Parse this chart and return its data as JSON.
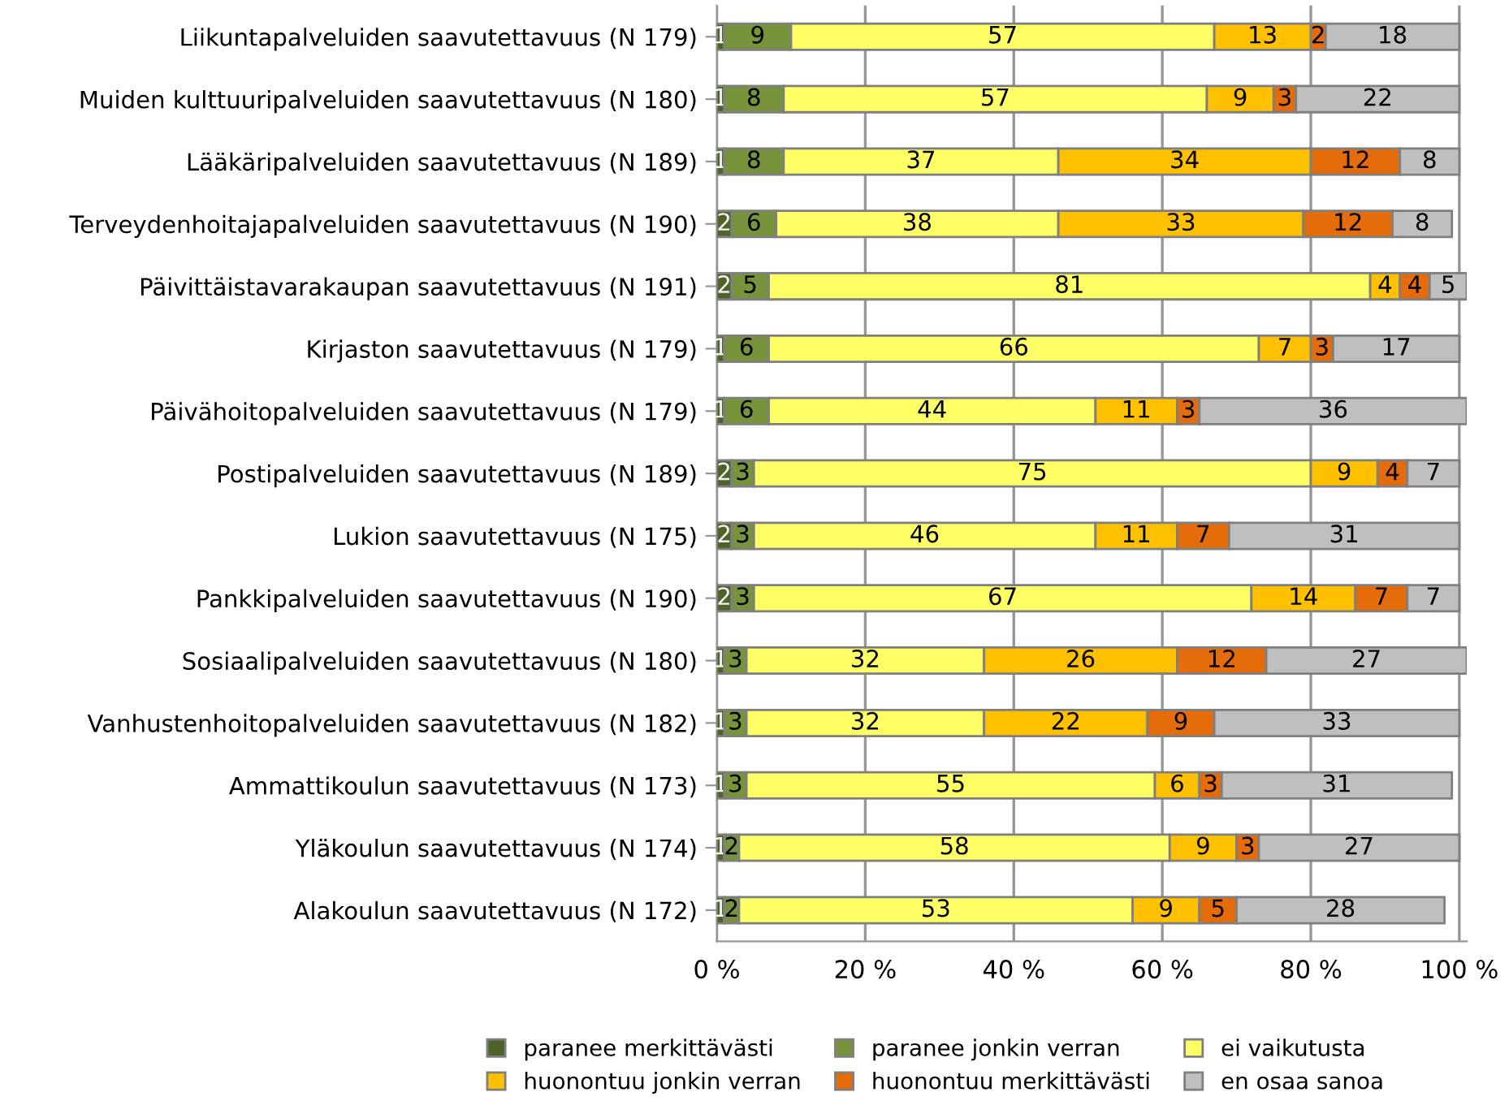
{
  "chart_data": {
    "type": "bar",
    "orientation": "horizontal",
    "stacked": true,
    "data_labels": true,
    "grid": "x",
    "legend": "bottom",
    "categories": [
      "Liikuntapalveluiden saavutettavuus (N 179)",
      "Muiden kulttuuripalveluiden saavutettavuus (N 180)",
      "Lääkäripalveluiden saavutettavuus (N 189)",
      "Terveydenhoitajapalveluiden saavutettavuus (N 190)",
      "Päivittäistavarakaupan saavutettavuus (N 191)",
      "Kirjaston saavutettavuus (N 179)",
      "Päivähoitopalveluiden saavutettavuus (N 179)",
      "Postipalveluiden saavutettavuus (N 189)",
      "Lukion saavutettavuus (N 175)",
      "Pankkipalveluiden saavutettavuus (N 190)",
      "Sosiaalipalveluiden saavutettavuus (N 180)",
      "Vanhustenhoitopalveluiden saavutettavuus (N 182)",
      "Ammattikoulun saavutettavuus (N 173)",
      "Yläkoulun saavutettavuus (N 174)",
      "Alakoulun saavutettavuus (N 172)"
    ],
    "xlim": [
      0,
      101
    ],
    "xticks": [
      {
        "value": 0,
        "label": "0 %"
      },
      {
        "value": 20,
        "label": "20 %"
      },
      {
        "value": 40,
        "label": "40 %"
      },
      {
        "value": 60,
        "label": "60 %"
      },
      {
        "value": 80,
        "label": "80 %"
      },
      {
        "value": 100,
        "label": "100 %"
      }
    ],
    "series": [
      {
        "name": "paranee merkittävästi",
        "color": "#4f6228",
        "values": [
          1,
          1,
          1,
          2,
          2,
          1,
          1,
          2,
          2,
          2,
          1,
          1,
          1,
          1,
          1
        ]
      },
      {
        "name": "paranee jonkin verran",
        "color": "#77933c",
        "values": [
          9,
          8,
          8,
          6,
          5,
          6,
          6,
          3,
          3,
          3,
          3,
          3,
          3,
          2,
          2
        ]
      },
      {
        "name": "ei vaikutusta",
        "color": "#ffff66",
        "values": [
          57,
          57,
          37,
          38,
          81,
          66,
          44,
          75,
          46,
          67,
          32,
          32,
          55,
          58,
          53
        ]
      },
      {
        "name": "huonontuu jonkin verran",
        "color": "#ffc000",
        "values": [
          13,
          9,
          34,
          33,
          4,
          7,
          11,
          9,
          11,
          14,
          26,
          22,
          6,
          9,
          9
        ]
      },
      {
        "name": "huonontuu merkittävästi",
        "color": "#e46c0a",
        "values": [
          2,
          3,
          12,
          12,
          4,
          3,
          3,
          4,
          7,
          7,
          12,
          9,
          3,
          3,
          5
        ]
      },
      {
        "name": "en osaa sanoa",
        "color": "#bfbfbf",
        "values": [
          18,
          22,
          8,
          8,
          5,
          17,
          36,
          7,
          31,
          7,
          27,
          33,
          31,
          27,
          28
        ]
      }
    ]
  }
}
